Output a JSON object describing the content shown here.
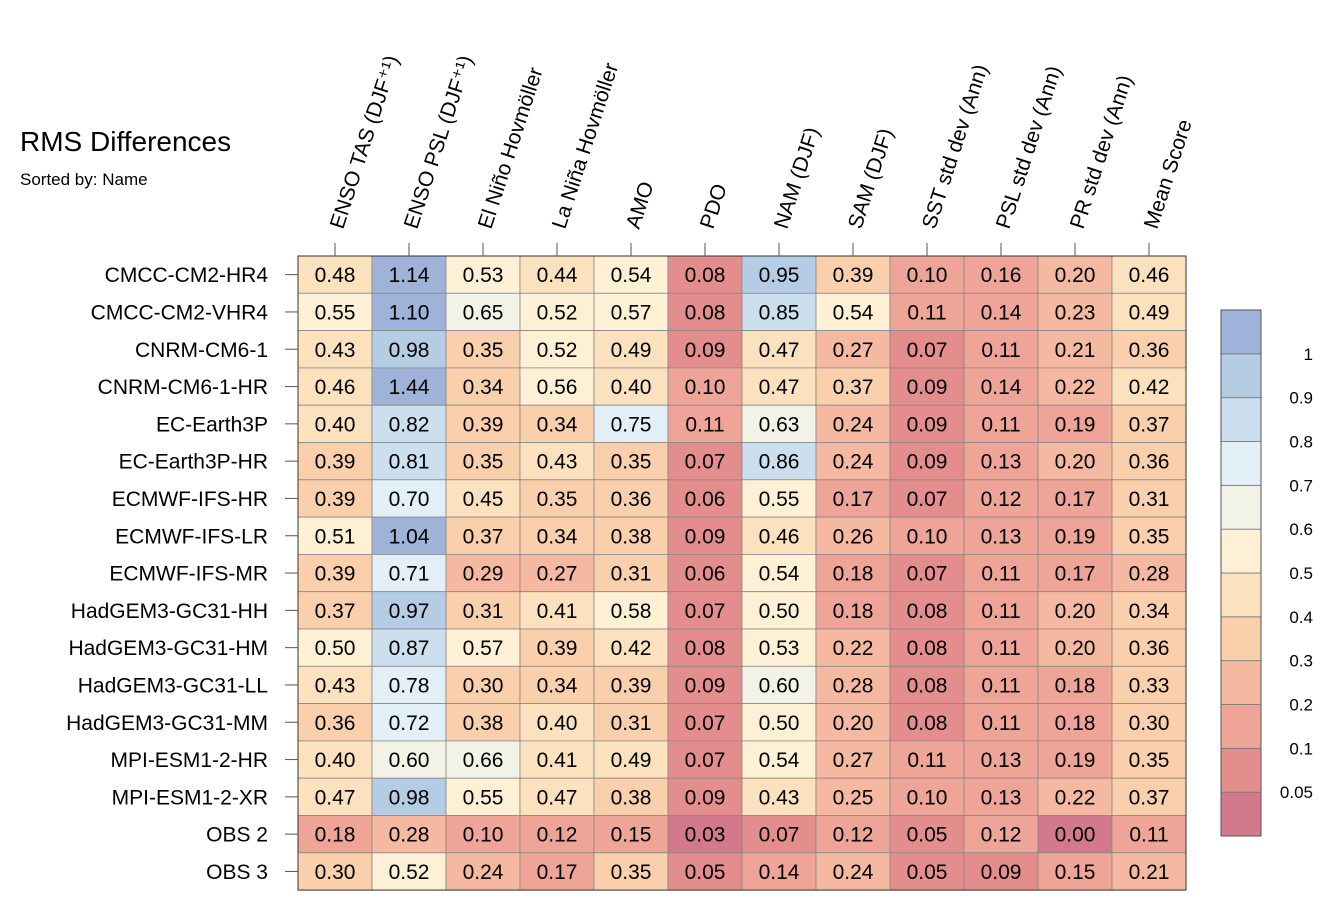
{
  "header": {
    "title": "RMS Differences",
    "subtitle": "Sorted by: Name"
  },
  "chart_data": {
    "type": "heatmap",
    "title": "RMS Differences",
    "subtitle": "Sorted by: Name",
    "columns": [
      "ENSO TAS (DJF⁺¹)",
      "ENSO PSL (DJF⁺¹)",
      "El Niño Hovmöller",
      "La Niña Hovmöller",
      "AMO",
      "PDO",
      "NAM (DJF)",
      "SAM (DJF)",
      "SST std dev (Ann)",
      "PSL std dev (Ann)",
      "PR std dev (Ann)",
      "Mean Score"
    ],
    "rows": [
      "CMCC-CM2-HR4",
      "CMCC-CM2-VHR4",
      "CNRM-CM6-1",
      "CNRM-CM6-1-HR",
      "EC-Earth3P",
      "EC-Earth3P-HR",
      "ECMWF-IFS-HR",
      "ECMWF-IFS-LR",
      "ECMWF-IFS-MR",
      "HadGEM3-GC31-HH",
      "HadGEM3-GC31-HM",
      "HadGEM3-GC31-LL",
      "HadGEM3-GC31-MM",
      "MPI-ESM1-2-HR",
      "MPI-ESM1-2-XR",
      "OBS 2",
      "OBS 3"
    ],
    "values": [
      [
        "0.48",
        "1.14",
        "0.53",
        "0.44",
        "0.54",
        "0.08",
        "0.95",
        "0.39",
        "0.10",
        "0.16",
        "0.20",
        "0.46"
      ],
      [
        "0.55",
        "1.10",
        "0.65",
        "0.52",
        "0.57",
        "0.08",
        "0.85",
        "0.54",
        "0.11",
        "0.14",
        "0.23",
        "0.49"
      ],
      [
        "0.43",
        "0.98",
        "0.35",
        "0.52",
        "0.49",
        "0.09",
        "0.47",
        "0.27",
        "0.07",
        "0.11",
        "0.21",
        "0.36"
      ],
      [
        "0.46",
        "1.44",
        "0.34",
        "0.56",
        "0.40",
        "0.10",
        "0.47",
        "0.37",
        "0.09",
        "0.14",
        "0.22",
        "0.42"
      ],
      [
        "0.40",
        "0.82",
        "0.39",
        "0.34",
        "0.75",
        "0.11",
        "0.63",
        "0.24",
        "0.09",
        "0.11",
        "0.19",
        "0.37"
      ],
      [
        "0.39",
        "0.81",
        "0.35",
        "0.43",
        "0.35",
        "0.07",
        "0.86",
        "0.24",
        "0.09",
        "0.13",
        "0.20",
        "0.36"
      ],
      [
        "0.39",
        "0.70",
        "0.45",
        "0.35",
        "0.36",
        "0.06",
        "0.55",
        "0.17",
        "0.07",
        "0.12",
        "0.17",
        "0.31"
      ],
      [
        "0.51",
        "1.04",
        "0.37",
        "0.34",
        "0.38",
        "0.09",
        "0.46",
        "0.26",
        "0.10",
        "0.13",
        "0.19",
        "0.35"
      ],
      [
        "0.39",
        "0.71",
        "0.29",
        "0.27",
        "0.31",
        "0.06",
        "0.54",
        "0.18",
        "0.07",
        "0.11",
        "0.17",
        "0.28"
      ],
      [
        "0.37",
        "0.97",
        "0.31",
        "0.41",
        "0.58",
        "0.07",
        "0.50",
        "0.18",
        "0.08",
        "0.11",
        "0.20",
        "0.34"
      ],
      [
        "0.50",
        "0.87",
        "0.57",
        "0.39",
        "0.42",
        "0.08",
        "0.53",
        "0.22",
        "0.08",
        "0.11",
        "0.20",
        "0.36"
      ],
      [
        "0.43",
        "0.78",
        "0.30",
        "0.34",
        "0.39",
        "0.09",
        "0.60",
        "0.28",
        "0.08",
        "0.11",
        "0.18",
        "0.33"
      ],
      [
        "0.36",
        "0.72",
        "0.38",
        "0.40",
        "0.31",
        "0.07",
        "0.50",
        "0.20",
        "0.08",
        "0.11",
        "0.18",
        "0.30"
      ],
      [
        "0.40",
        "0.60",
        "0.66",
        "0.41",
        "0.49",
        "0.07",
        "0.54",
        "0.27",
        "0.11",
        "0.13",
        "0.19",
        "0.35"
      ],
      [
        "0.47",
        "0.98",
        "0.55",
        "0.47",
        "0.38",
        "0.09",
        "0.43",
        "0.25",
        "0.10",
        "0.13",
        "0.22",
        "0.37"
      ],
      [
        "0.18",
        "0.28",
        "0.10",
        "0.12",
        "0.15",
        "0.03",
        "0.07",
        "0.12",
        "0.05",
        "0.12",
        "0.00",
        "0.11"
      ],
      [
        "0.30",
        "0.52",
        "0.24",
        "0.17",
        "0.35",
        "0.05",
        "0.14",
        "0.24",
        "0.05",
        "0.09",
        "0.15",
        "0.21"
      ]
    ],
    "colorbar": {
      "bounds": [
        0.05,
        0.1,
        0.2,
        0.3,
        0.4,
        0.5,
        0.6,
        0.7,
        0.8,
        0.9,
        1
      ],
      "labels": [
        "0.05",
        "0.1",
        "0.2",
        "0.3",
        "0.4",
        "0.5",
        "0.6",
        "0.7",
        "0.8",
        "0.9",
        "1"
      ],
      "colors": [
        "#d27a8c",
        "#e38e8c",
        "#eea497",
        "#f5b9a1",
        "#f9cfac",
        "#fbe1be",
        "#fdf0d4",
        "#f3f2e6",
        "#e2eff6",
        "#ccdfee",
        "#b4cde5",
        "#9fb3d9"
      ]
    }
  }
}
